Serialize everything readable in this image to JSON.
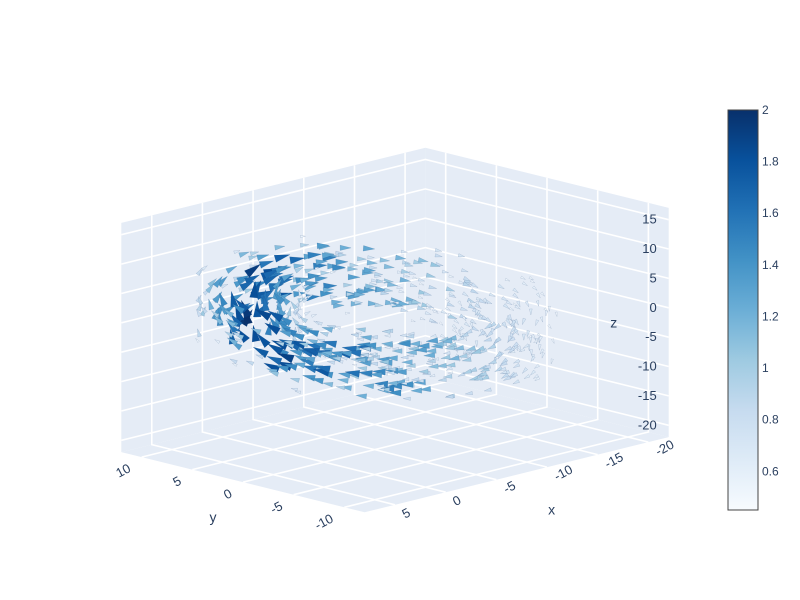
{
  "chart_data": {
    "type": "cone",
    "description_3d": "3D cone (vector field) plot, view from +x/-y side",
    "axes": {
      "x": {
        "label": "x",
        "ticks": [
          -20,
          -15,
          -10,
          -5,
          0,
          5
        ]
      },
      "y": {
        "label": "y",
        "ticks": [
          -10,
          -5,
          0,
          5,
          10
        ]
      },
      "z": {
        "label": "z",
        "ticks": [
          -20,
          -15,
          -10,
          -5,
          0,
          5,
          10,
          15
        ]
      }
    },
    "x_range": [
      -22,
      8
    ],
    "y_range": [
      -12,
      12
    ],
    "z_range": [
      -22,
      17
    ],
    "grid": true,
    "scene_background": "#e5ecf6",
    "colorbar": {
      "colorscale": "Blues",
      "cmin": 0.45,
      "cmax": 2.0,
      "ticks": [
        0.6,
        0.8,
        1,
        1.2,
        1.4,
        1.6,
        1.8,
        2
      ],
      "colors": [
        "#f7fbff",
        "#deebf7",
        "#c6dbef",
        "#9ecae1",
        "#6baed6",
        "#4292c6",
        "#2171b5",
        "#08519c",
        "#08306b"
      ]
    },
    "vector_field": {
      "center": [
        -5,
        0,
        0
      ],
      "ring_radius": 9,
      "thickness": 4,
      "n_cones": 700
    }
  }
}
